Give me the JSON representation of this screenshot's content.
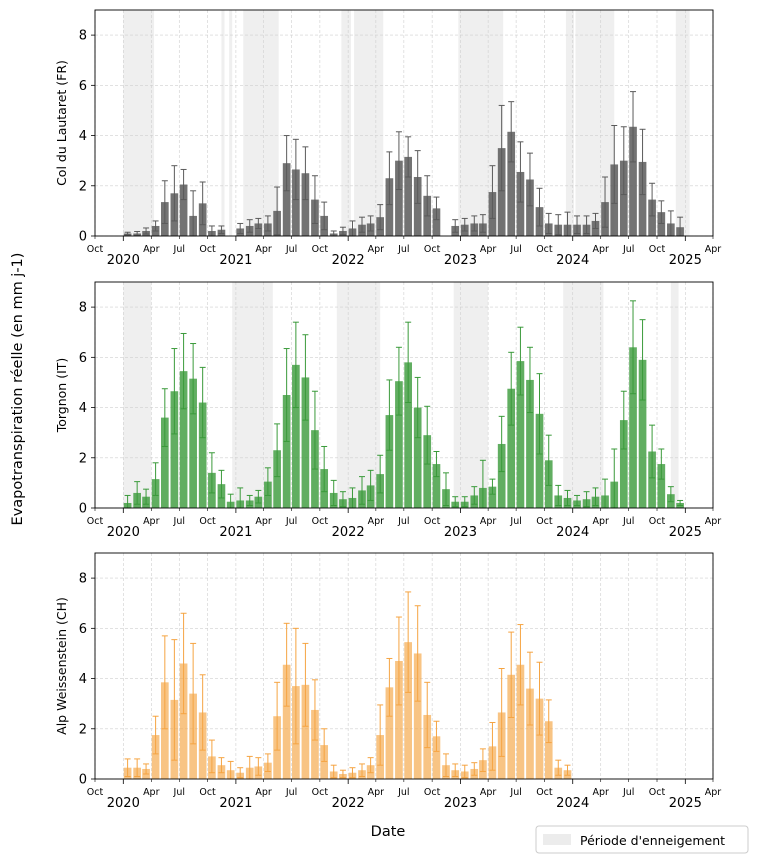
{
  "figure": {
    "ylabel": "Evapotranspiration réelle (en mm j-1)",
    "xlabel": "Date",
    "legend": {
      "label": "Période d'enneigement",
      "placement": "bottom-right",
      "color": "#ececec"
    }
  },
  "chart_data": [
    {
      "type": "bar",
      "site": "Col du Lautaret (FR)",
      "ylabel": "Col du Lautaret (FR)",
      "color": "#5a5a5a",
      "bar_alpha": 0.85,
      "ylim": [
        0,
        9
      ],
      "yticks": [
        0,
        2,
        4,
        6,
        8
      ],
      "x_start": "2019-10-01",
      "x_end": "2025-04-01",
      "year_ticks": [
        "2020",
        "2021",
        "2022",
        "2023",
        "2024",
        "2025"
      ],
      "month_ticks": [
        "Apr",
        "Jul",
        "Oct"
      ],
      "grid": true,
      "snow_periods": [
        [
          "2020-01-01",
          "2020-04-10"
        ],
        [
          "2020-11-15",
          "2020-11-25"
        ],
        [
          "2020-12-10",
          "2020-12-20"
        ],
        [
          "2021-01-25",
          "2021-05-20"
        ],
        [
          "2021-12-10",
          "2022-01-10"
        ],
        [
          "2022-01-20",
          "2022-04-25"
        ],
        [
          "2022-12-25",
          "2023-05-20"
        ],
        [
          "2023-12-10",
          "2024-01-05"
        ],
        [
          "2024-01-10",
          "2024-05-15"
        ],
        [
          "2024-12-01",
          "2025-01-15"
        ]
      ],
      "series": [
        {
          "date": "2020-01-01",
          "value": 0.1,
          "err": 0.05
        },
        {
          "date": "2020-02-01",
          "value": 0.1,
          "err": 0.08
        },
        {
          "date": "2020-03-01",
          "value": 0.2,
          "err": 0.12
        },
        {
          "date": "2020-04-01",
          "value": 0.4,
          "err": 0.2
        },
        {
          "date": "2020-05-01",
          "value": 1.35,
          "err": 0.85
        },
        {
          "date": "2020-06-01",
          "value": 1.7,
          "err": 1.1
        },
        {
          "date": "2020-07-01",
          "value": 2.05,
          "err": 0.6
        },
        {
          "date": "2020-08-01",
          "value": 0.8,
          "err": 1.0
        },
        {
          "date": "2020-09-01",
          "value": 1.3,
          "err": 0.85
        },
        {
          "date": "2020-10-01",
          "value": 0.2,
          "err": 0.2
        },
        {
          "date": "2020-11-01",
          "value": 0.25,
          "err": 0.15
        },
        {
          "date": "2021-01-01",
          "value": 0.3,
          "err": 0.2
        },
        {
          "date": "2021-02-01",
          "value": 0.4,
          "err": 0.25
        },
        {
          "date": "2021-03-01",
          "value": 0.5,
          "err": 0.2
        },
        {
          "date": "2021-04-01",
          "value": 0.5,
          "err": 0.3
        },
        {
          "date": "2021-05-01",
          "value": 1.0,
          "err": 0.95
        },
        {
          "date": "2021-06-01",
          "value": 2.9,
          "err": 1.1
        },
        {
          "date": "2021-07-01",
          "value": 2.65,
          "err": 1.2
        },
        {
          "date": "2021-08-01",
          "value": 2.5,
          "err": 1.05
        },
        {
          "date": "2021-09-01",
          "value": 1.45,
          "err": 0.95
        },
        {
          "date": "2021-10-01",
          "value": 0.8,
          "err": 0.55
        },
        {
          "date": "2021-11-01",
          "value": 0.1,
          "err": 0.1
        },
        {
          "date": "2021-12-01",
          "value": 0.2,
          "err": 0.15
        },
        {
          "date": "2022-01-01",
          "value": 0.3,
          "err": 0.3
        },
        {
          "date": "2022-02-01",
          "value": 0.45,
          "err": 0.3
        },
        {
          "date": "2022-03-01",
          "value": 0.5,
          "err": 0.3
        },
        {
          "date": "2022-04-01",
          "value": 0.75,
          "err": 0.5
        },
        {
          "date": "2022-05-01",
          "value": 2.3,
          "err": 1.05
        },
        {
          "date": "2022-06-01",
          "value": 3.0,
          "err": 1.15
        },
        {
          "date": "2022-07-01",
          "value": 3.15,
          "err": 0.8
        },
        {
          "date": "2022-08-01",
          "value": 2.35,
          "err": 1.05
        },
        {
          "date": "2022-09-01",
          "value": 1.6,
          "err": 0.8
        },
        {
          "date": "2022-10-01",
          "value": 1.1,
          "err": 0.45
        },
        {
          "date": "2022-12-01",
          "value": 0.4,
          "err": 0.25
        },
        {
          "date": "2023-01-01",
          "value": 0.45,
          "err": 0.25
        },
        {
          "date": "2023-02-01",
          "value": 0.5,
          "err": 0.3
        },
        {
          "date": "2023-03-01",
          "value": 0.5,
          "err": 0.35
        },
        {
          "date": "2023-04-01",
          "value": 1.75,
          "err": 1.05
        },
        {
          "date": "2023-05-01",
          "value": 3.5,
          "err": 1.7
        },
        {
          "date": "2023-06-01",
          "value": 4.15,
          "err": 1.2
        },
        {
          "date": "2023-07-01",
          "value": 2.55,
          "err": 1.2
        },
        {
          "date": "2023-08-01",
          "value": 2.25,
          "err": 1.05
        },
        {
          "date": "2023-09-01",
          "value": 1.15,
          "err": 0.75
        },
        {
          "date": "2023-10-01",
          "value": 0.5,
          "err": 0.4
        },
        {
          "date": "2023-11-01",
          "value": 0.45,
          "err": 0.4
        },
        {
          "date": "2023-12-01",
          "value": 0.45,
          "err": 0.5
        },
        {
          "date": "2024-01-01",
          "value": 0.45,
          "err": 0.35
        },
        {
          "date": "2024-02-01",
          "value": 0.45,
          "err": 0.35
        },
        {
          "date": "2024-03-01",
          "value": 0.6,
          "err": 0.3
        },
        {
          "date": "2024-04-01",
          "value": 1.35,
          "err": 1.0
        },
        {
          "date": "2024-05-01",
          "value": 2.85,
          "err": 1.55
        },
        {
          "date": "2024-06-01",
          "value": 3.0,
          "err": 1.35
        },
        {
          "date": "2024-07-01",
          "value": 4.35,
          "err": 1.4
        },
        {
          "date": "2024-08-01",
          "value": 2.95,
          "err": 1.3
        },
        {
          "date": "2024-09-01",
          "value": 1.45,
          "err": 0.65
        },
        {
          "date": "2024-10-01",
          "value": 0.95,
          "err": 0.45
        },
        {
          "date": "2024-11-01",
          "value": 0.5,
          "err": 0.5
        },
        {
          "date": "2024-12-01",
          "value": 0.35,
          "err": 0.4
        }
      ]
    },
    {
      "type": "bar",
      "site": "Torgnon (IT)",
      "ylabel": "Torgnon (IT)",
      "color": "#3a9a3a",
      "bar_alpha": 0.8,
      "ylim": [
        0,
        9
      ],
      "yticks": [
        0,
        2,
        4,
        6,
        8
      ],
      "x_start": "2019-10-01",
      "x_end": "2025-04-01",
      "year_ticks": [
        "2020",
        "2021",
        "2022",
        "2023",
        "2024",
        "2025"
      ],
      "month_ticks": [
        "Apr",
        "Jul",
        "Oct"
      ],
      "grid": true,
      "snow_periods": [
        [
          "2020-01-01",
          "2020-04-01"
        ],
        [
          "2020-12-20",
          "2021-05-01"
        ],
        [
          "2021-11-25",
          "2022-04-15"
        ],
        [
          "2022-12-10",
          "2023-04-01"
        ],
        [
          "2023-12-01",
          "2024-04-10"
        ],
        [
          "2024-11-15",
          "2024-12-10"
        ]
      ],
      "series": [
        {
          "date": "2020-01-01",
          "value": 0.2,
          "err": 0.3
        },
        {
          "date": "2020-02-01",
          "value": 0.6,
          "err": 0.45
        },
        {
          "date": "2020-03-01",
          "value": 0.45,
          "err": 0.3
        },
        {
          "date": "2020-04-01",
          "value": 1.15,
          "err": 0.65
        },
        {
          "date": "2020-05-01",
          "value": 3.6,
          "err": 1.15
        },
        {
          "date": "2020-06-01",
          "value": 4.65,
          "err": 1.7
        },
        {
          "date": "2020-07-01",
          "value": 5.45,
          "err": 1.5
        },
        {
          "date": "2020-08-01",
          "value": 5.15,
          "err": 1.4
        },
        {
          "date": "2020-09-01",
          "value": 4.2,
          "err": 1.4
        },
        {
          "date": "2020-10-01",
          "value": 1.4,
          "err": 0.8
        },
        {
          "date": "2020-11-01",
          "value": 0.95,
          "err": 0.55
        },
        {
          "date": "2020-12-01",
          "value": 0.25,
          "err": 0.3
        },
        {
          "date": "2021-01-01",
          "value": 0.3,
          "err": 0.5
        },
        {
          "date": "2021-02-01",
          "value": 0.3,
          "err": 0.2
        },
        {
          "date": "2021-03-01",
          "value": 0.45,
          "err": 0.25
        },
        {
          "date": "2021-04-01",
          "value": 1.05,
          "err": 0.55
        },
        {
          "date": "2021-05-01",
          "value": 2.3,
          "err": 1.05
        },
        {
          "date": "2021-06-01",
          "value": 4.5,
          "err": 1.85
        },
        {
          "date": "2021-07-01",
          "value": 5.7,
          "err": 1.7
        },
        {
          "date": "2021-08-01",
          "value": 5.2,
          "err": 1.7
        },
        {
          "date": "2021-09-01",
          "value": 3.1,
          "err": 1.55
        },
        {
          "date": "2021-10-01",
          "value": 1.55,
          "err": 0.9
        },
        {
          "date": "2021-11-01",
          "value": 0.6,
          "err": 0.5
        },
        {
          "date": "2021-12-01",
          "value": 0.35,
          "err": 0.3
        },
        {
          "date": "2022-01-01",
          "value": 0.4,
          "err": 0.4
        },
        {
          "date": "2022-02-01",
          "value": 0.7,
          "err": 0.55
        },
        {
          "date": "2022-03-01",
          "value": 0.9,
          "err": 0.6
        },
        {
          "date": "2022-04-01",
          "value": 1.35,
          "err": 0.75
        },
        {
          "date": "2022-05-01",
          "value": 3.7,
          "err": 1.4
        },
        {
          "date": "2022-06-01",
          "value": 5.05,
          "err": 1.35
        },
        {
          "date": "2022-07-01",
          "value": 5.8,
          "err": 1.6
        },
        {
          "date": "2022-08-01",
          "value": 4.0,
          "err": 1.2
        },
        {
          "date": "2022-09-01",
          "value": 2.9,
          "err": 1.15
        },
        {
          "date": "2022-10-01",
          "value": 1.75,
          "err": 0.5
        },
        {
          "date": "2022-11-01",
          "value": 0.75,
          "err": 0.65
        },
        {
          "date": "2022-12-01",
          "value": 0.25,
          "err": 0.2
        },
        {
          "date": "2023-01-01",
          "value": 0.25,
          "err": 0.2
        },
        {
          "date": "2023-02-01",
          "value": 0.5,
          "err": 0.35
        },
        {
          "date": "2023-03-01",
          "value": 0.8,
          "err": 1.1
        },
        {
          "date": "2023-04-01",
          "value": 0.85,
          "err": 0.3
        },
        {
          "date": "2023-05-01",
          "value": 2.55,
          "err": 1.1
        },
        {
          "date": "2023-06-01",
          "value": 4.75,
          "err": 1.45
        },
        {
          "date": "2023-07-01",
          "value": 5.85,
          "err": 1.35
        },
        {
          "date": "2023-08-01",
          "value": 5.1,
          "err": 1.3
        },
        {
          "date": "2023-09-01",
          "value": 3.75,
          "err": 1.6
        },
        {
          "date": "2023-10-01",
          "value": 1.9,
          "err": 1.0
        },
        {
          "date": "2023-11-01",
          "value": 0.5,
          "err": 0.4
        },
        {
          "date": "2023-12-01",
          "value": 0.4,
          "err": 0.3
        },
        {
          "date": "2024-01-01",
          "value": 0.3,
          "err": 0.2
        },
        {
          "date": "2024-02-01",
          "value": 0.35,
          "err": 0.3
        },
        {
          "date": "2024-03-01",
          "value": 0.45,
          "err": 0.35
        },
        {
          "date": "2024-04-01",
          "value": 0.5,
          "err": 0.65
        },
        {
          "date": "2024-05-01",
          "value": 1.05,
          "err": 1.3
        },
        {
          "date": "2024-06-01",
          "value": 3.5,
          "err": 1.15
        },
        {
          "date": "2024-07-01",
          "value": 6.4,
          "err": 1.85
        },
        {
          "date": "2024-08-01",
          "value": 5.9,
          "err": 1.6
        },
        {
          "date": "2024-09-01",
          "value": 2.25,
          "err": 1.05
        },
        {
          "date": "2024-10-01",
          "value": 1.75,
          "err": 0.6
        },
        {
          "date": "2024-11-01",
          "value": 0.55,
          "err": 0.3
        },
        {
          "date": "2024-12-01",
          "value": 0.2,
          "err": 0.1
        }
      ]
    },
    {
      "type": "bar",
      "site": "Alp Weissenstein (CH)",
      "ylabel": "Alp Weissenstein (CH)",
      "color": "#f5a442",
      "bar_alpha": 0.65,
      "ylim": [
        0,
        9
      ],
      "yticks": [
        0,
        2,
        4,
        6,
        8
      ],
      "x_start": "2019-10-01",
      "x_end": "2025-04-01",
      "year_ticks": [
        "2020",
        "2021",
        "2022",
        "2023",
        "2024",
        "2025"
      ],
      "month_ticks": [
        "Apr",
        "Jul",
        "Oct"
      ],
      "grid": true,
      "snow_periods": [],
      "series": [
        {
          "date": "2020-01-01",
          "value": 0.45,
          "err": 0.35
        },
        {
          "date": "2020-02-01",
          "value": 0.45,
          "err": 0.35
        },
        {
          "date": "2020-03-01",
          "value": 0.4,
          "err": 0.2
        },
        {
          "date": "2020-04-01",
          "value": 1.75,
          "err": 0.75
        },
        {
          "date": "2020-05-01",
          "value": 3.85,
          "err": 1.85
        },
        {
          "date": "2020-06-01",
          "value": 3.15,
          "err": 2.4
        },
        {
          "date": "2020-07-01",
          "value": 4.6,
          "err": 2.0
        },
        {
          "date": "2020-08-01",
          "value": 3.4,
          "err": 2.0
        },
        {
          "date": "2020-09-01",
          "value": 2.65,
          "err": 1.5
        },
        {
          "date": "2020-10-01",
          "value": 0.9,
          "err": 0.65
        },
        {
          "date": "2020-11-01",
          "value": 0.55,
          "err": 0.3
        },
        {
          "date": "2020-12-01",
          "value": 0.35,
          "err": 0.35
        },
        {
          "date": "2021-01-01",
          "value": 0.25,
          "err": 0.2
        },
        {
          "date": "2021-02-01",
          "value": 0.45,
          "err": 0.45
        },
        {
          "date": "2021-03-01",
          "value": 0.5,
          "err": 0.35
        },
        {
          "date": "2021-04-01",
          "value": 0.65,
          "err": 0.35
        },
        {
          "date": "2021-05-01",
          "value": 2.5,
          "err": 1.35
        },
        {
          "date": "2021-06-01",
          "value": 4.55,
          "err": 1.65
        },
        {
          "date": "2021-07-01",
          "value": 3.7,
          "err": 2.3
        },
        {
          "date": "2021-08-01",
          "value": 3.75,
          "err": 1.65
        },
        {
          "date": "2021-09-01",
          "value": 2.75,
          "err": 1.2
        },
        {
          "date": "2021-10-01",
          "value": 1.35,
          "err": 0.65
        },
        {
          "date": "2021-11-01",
          "value": 0.3,
          "err": 0.25
        },
        {
          "date": "2021-12-01",
          "value": 0.2,
          "err": 0.15
        },
        {
          "date": "2022-01-01",
          "value": 0.25,
          "err": 0.2
        },
        {
          "date": "2022-02-01",
          "value": 0.35,
          "err": 0.25
        },
        {
          "date": "2022-03-01",
          "value": 0.55,
          "err": 0.3
        },
        {
          "date": "2022-04-01",
          "value": 1.75,
          "err": 1.2
        },
        {
          "date": "2022-05-01",
          "value": 3.65,
          "err": 1.15
        },
        {
          "date": "2022-06-01",
          "value": 4.7,
          "err": 1.75
        },
        {
          "date": "2022-07-01",
          "value": 5.45,
          "err": 2.0
        },
        {
          "date": "2022-08-01",
          "value": 5.0,
          "err": 1.9
        },
        {
          "date": "2022-09-01",
          "value": 2.55,
          "err": 1.3
        },
        {
          "date": "2022-10-01",
          "value": 1.7,
          "err": 0.6
        },
        {
          "date": "2022-11-01",
          "value": 0.55,
          "err": 0.45
        },
        {
          "date": "2022-12-01",
          "value": 0.35,
          "err": 0.25
        },
        {
          "date": "2023-01-01",
          "value": 0.3,
          "err": 0.25
        },
        {
          "date": "2023-02-01",
          "value": 0.4,
          "err": 0.25
        },
        {
          "date": "2023-03-01",
          "value": 0.75,
          "err": 0.45
        },
        {
          "date": "2023-04-01",
          "value": 1.3,
          "err": 0.95
        },
        {
          "date": "2023-05-01",
          "value": 2.65,
          "err": 1.75
        },
        {
          "date": "2023-06-01",
          "value": 4.15,
          "err": 1.7
        },
        {
          "date": "2023-07-01",
          "value": 4.55,
          "err": 1.6
        },
        {
          "date": "2023-08-01",
          "value": 3.6,
          "err": 1.45
        },
        {
          "date": "2023-09-01",
          "value": 3.2,
          "err": 1.45
        },
        {
          "date": "2023-10-01",
          "value": 2.3,
          "err": 0.85
        },
        {
          "date": "2023-11-01",
          "value": 0.45,
          "err": 0.3
        },
        {
          "date": "2023-12-01",
          "value": 0.35,
          "err": 0.2
        }
      ]
    }
  ]
}
